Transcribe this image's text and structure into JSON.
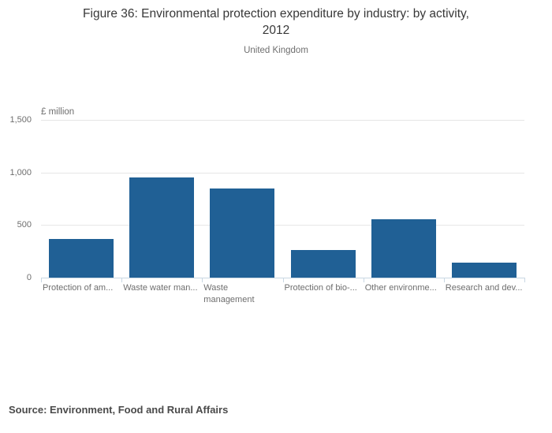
{
  "chart_data": {
    "type": "bar",
    "title": "Figure 36: Environmental protection expenditure by industry: by activity, 2012",
    "title_lines": [
      "Figure 36: Environmental protection expenditure by industry: by activity,",
      "2012"
    ],
    "subtitle": "United Kingdom",
    "unit_label": "£ million",
    "categories": [
      "Protection of am...",
      "Waste water man...",
      "Waste management",
      "Protection of bio-...",
      "Other environme...",
      "Research and dev..."
    ],
    "category_lines": [
      [
        "Protection of am..."
      ],
      [
        "Waste water man..."
      ],
      [
        "Waste",
        "management"
      ],
      [
        "Protection of bio-..."
      ],
      [
        "Other environme..."
      ],
      [
        "Research and dev..."
      ]
    ],
    "values": [
      365,
      955,
      850,
      260,
      555,
      145
    ],
    "xlabel": "",
    "ylabel": "£ million",
    "ylim": [
      0,
      1500
    ],
    "yticks": [
      0,
      500,
      1000,
      1500
    ],
    "ytick_labels": [
      "0",
      "500",
      "1,000",
      "1,500"
    ],
    "grid": true,
    "legend": "none",
    "bar_color": "#206095",
    "gridline_color": "#e6e6e6",
    "axis_color": "#c9d7e3"
  },
  "footer": {
    "source": "Source: Environment, Food and Rural Affairs"
  }
}
